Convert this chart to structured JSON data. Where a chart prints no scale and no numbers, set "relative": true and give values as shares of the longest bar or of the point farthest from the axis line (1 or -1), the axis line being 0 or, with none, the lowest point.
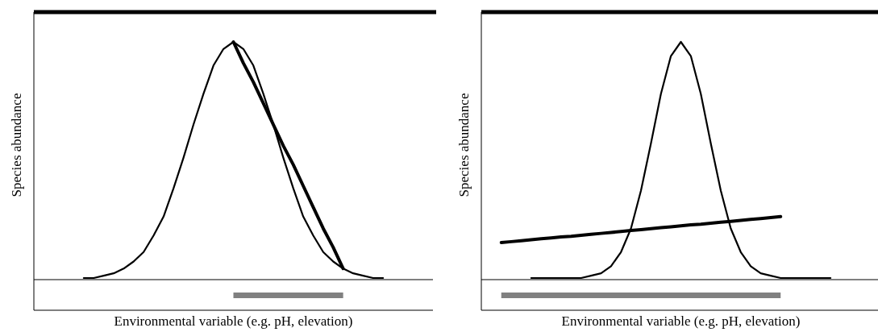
{
  "chart_data": [
    {
      "type": "line",
      "relative": true,
      "xlabel": "Environmental variable (e.g. pH, elevation)",
      "ylabel": "Species abundance",
      "line_style": "solid",
      "categories": [
        null,
        null,
        null,
        null,
        null,
        null,
        null,
        null,
        null,
        null,
        null,
        null,
        null,
        null,
        null,
        null,
        null,
        null,
        null,
        null,
        null,
        null,
        null,
        null,
        null,
        null,
        null,
        null,
        null,
        null,
        null,
        null,
        null,
        null,
        null,
        null,
        null,
        null,
        null,
        null,
        null
      ],
      "series": [
        {
          "color": "#000000",
          "values": [
            null,
            null,
            null,
            null,
            null,
            0,
            0,
            0.01,
            0.02,
            0.04,
            0.07,
            0.11,
            0.18,
            0.26,
            0.38,
            0.51,
            0.65,
            0.78,
            0.9,
            0.97,
            1,
            0.97,
            0.9,
            0.78,
            0.65,
            0.51,
            0.38,
            0.26,
            0.18,
            0.11,
            0.07,
            0.04,
            0.02,
            0.01,
            0,
            0,
            null,
            null,
            null,
            null,
            null
          ]
        },
        {
          "color": "#000000",
          "values": [
            null,
            null,
            null,
            null,
            null,
            null,
            null,
            null,
            null,
            null,
            null,
            null,
            null,
            null,
            null,
            null,
            null,
            null,
            null,
            null,
            1,
            0.91,
            0.83,
            0.74,
            0.65,
            0.56,
            0.48,
            0.39,
            0.3,
            0.21,
            0.13,
            0.04,
            null,
            null,
            null,
            null,
            null,
            null,
            null,
            null,
            null
          ]
        }
      ]
    },
    {
      "type": "line",
      "relative": true,
      "xlabel": "Environmental variable (e.g. pH, elevation)",
      "ylabel": "Species abundance",
      "line_style": "solid",
      "categories": [
        null,
        null,
        null,
        null,
        null,
        null,
        null,
        null,
        null,
        null,
        null,
        null,
        null,
        null,
        null,
        null,
        null,
        null,
        null,
        null,
        null,
        null,
        null,
        null,
        null,
        null,
        null,
        null,
        null,
        null,
        null,
        null,
        null,
        null,
        null,
        null,
        null,
        null,
        null,
        null,
        null
      ],
      "series": [
        {
          "color": "#000000",
          "values": [
            null,
            null,
            null,
            null,
            null,
            0,
            0,
            0,
            0,
            0,
            0,
            0.01,
            0.02,
            0.05,
            0.11,
            0.21,
            0.37,
            0.57,
            0.78,
            0.94,
            1,
            0.94,
            0.78,
            0.57,
            0.37,
            0.21,
            0.11,
            0.05,
            0.02,
            0.01,
            0,
            0,
            0,
            0,
            0,
            0,
            null,
            null,
            null,
            null,
            null
          ]
        },
        {
          "color": "#000000",
          "values": [
            null,
            null,
            0.15,
            0.154,
            0.158,
            0.162,
            0.166,
            0.17,
            0.174,
            0.177,
            0.181,
            0.185,
            0.189,
            0.193,
            0.197,
            0.201,
            0.205,
            0.209,
            0.213,
            0.217,
            0.221,
            0.225,
            0.228,
            0.232,
            0.236,
            0.24,
            0.244,
            0.248,
            0.252,
            0.256,
            0.26,
            null,
            null,
            null,
            null,
            null,
            null,
            null,
            null,
            null,
            null
          ]
        }
      ]
    }
  ]
}
